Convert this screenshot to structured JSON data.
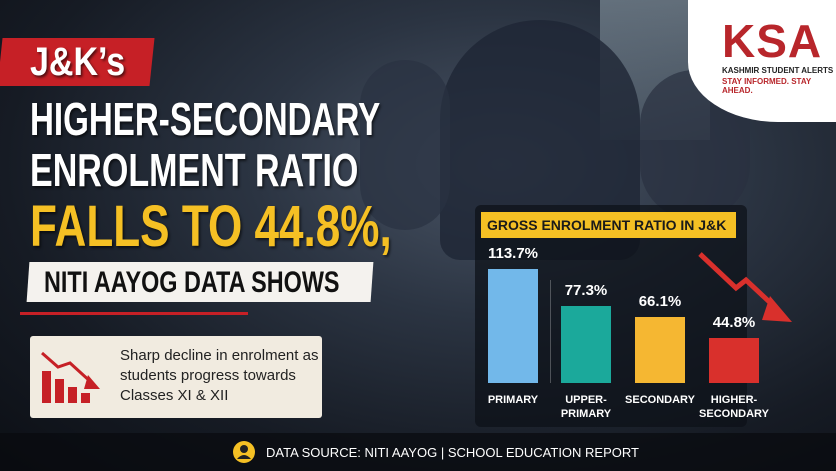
{
  "header": {
    "logo": {
      "name": "KSA",
      "full_name": "KASHMIR STUDENT ALERTS",
      "tagline": "STAY INFORMED. STAY AHEAD."
    }
  },
  "headline": {
    "line1": "J&K’s",
    "line2": "HIGHER-SECONDARY",
    "line3": "ENROLMENT RATIO",
    "line4": "FALLS TO 44.8%,",
    "line5": "NITI AAYOG DATA SHOWS"
  },
  "callout": "Sharp decline in enrolment as students progress towards Classes XI & XII",
  "footer": {
    "source": "DATA SOURCE: NITI AAYOG",
    "report": "SCHOOL EDUCATION REPORT"
  },
  "chart_data": {
    "type": "bar",
    "title": "GROSS ENROLMENT RATIO IN J&K",
    "categories": [
      "PRIMARY",
      "UPPER-PRIMARY",
      "SECONDARY",
      "HIGHER-SECONDARY"
    ],
    "values": [
      113.7,
      77.3,
      66.1,
      44.8
    ],
    "value_labels": [
      "113.7%",
      "77.3%",
      "66.1%",
      "44.8%"
    ],
    "colors": [
      "#72b8ea",
      "#1ba99b",
      "#f5b732",
      "#d9302c"
    ]
  }
}
